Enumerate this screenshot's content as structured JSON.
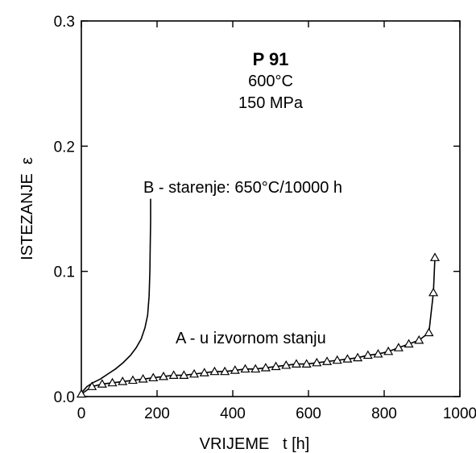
{
  "chart_data": {
    "type": "line",
    "xlabel": "VRIJEME   t [h]",
    "ylabel": "ISTEZANJE  ε",
    "xlim": [
      0,
      1000
    ],
    "ylim": [
      0,
      0.3
    ],
    "x_ticks": [
      {
        "value": 0,
        "label": "0"
      },
      {
        "value": 200,
        "label": "200"
      },
      {
        "value": 400,
        "label": "400"
      },
      {
        "value": 600,
        "label": "600"
      },
      {
        "value": 800,
        "label": "800"
      },
      {
        "value": 1000,
        "label": "1000"
      }
    ],
    "y_ticks": [
      {
        "value": 0,
        "label": "0.0"
      },
      {
        "value": 0.1,
        "label": "0.1"
      },
      {
        "value": 0.2,
        "label": "0.2"
      },
      {
        "value": 0.3,
        "label": "0.3"
      }
    ],
    "annotation": {
      "material": "P 91",
      "temperature": "600°C",
      "stress": "150 MPa"
    },
    "series": [
      {
        "name": "A - u izvornom stanju",
        "marker": "triangle",
        "points": [
          [
            0,
            0.002
          ],
          [
            28,
            0.008
          ],
          [
            55,
            0.01
          ],
          [
            82,
            0.011
          ],
          [
            109,
            0.012
          ],
          [
            136,
            0.013
          ],
          [
            163,
            0.014
          ],
          [
            190,
            0.015
          ],
          [
            217,
            0.016
          ],
          [
            244,
            0.017
          ],
          [
            271,
            0.017
          ],
          [
            298,
            0.018
          ],
          [
            325,
            0.019
          ],
          [
            352,
            0.02
          ],
          [
            379,
            0.02
          ],
          [
            406,
            0.021
          ],
          [
            433,
            0.022
          ],
          [
            460,
            0.022
          ],
          [
            487,
            0.023
          ],
          [
            514,
            0.024
          ],
          [
            541,
            0.025
          ],
          [
            568,
            0.026
          ],
          [
            595,
            0.026
          ],
          [
            622,
            0.027
          ],
          [
            649,
            0.028
          ],
          [
            676,
            0.029
          ],
          [
            703,
            0.03
          ],
          [
            730,
            0.031
          ],
          [
            757,
            0.033
          ],
          [
            784,
            0.034
          ],
          [
            811,
            0.036
          ],
          [
            838,
            0.039
          ],
          [
            865,
            0.042
          ],
          [
            892,
            0.045
          ],
          [
            918,
            0.051
          ],
          [
            930,
            0.083
          ],
          [
            934,
            0.111
          ]
        ]
      },
      {
        "name": "B - starenje: 650°C/10000 h",
        "marker": "none",
        "points": [
          [
            0,
            0.003
          ],
          [
            15,
            0.008
          ],
          [
            30,
            0.011
          ],
          [
            50,
            0.014
          ],
          [
            70,
            0.018
          ],
          [
            90,
            0.022
          ],
          [
            110,
            0.027
          ],
          [
            130,
            0.033
          ],
          [
            145,
            0.039
          ],
          [
            158,
            0.046
          ],
          [
            168,
            0.055
          ],
          [
            175,
            0.065
          ],
          [
            179,
            0.08
          ],
          [
            181,
            0.1
          ],
          [
            182,
            0.12
          ],
          [
            183,
            0.14
          ],
          [
            183,
            0.158
          ]
        ]
      }
    ]
  }
}
